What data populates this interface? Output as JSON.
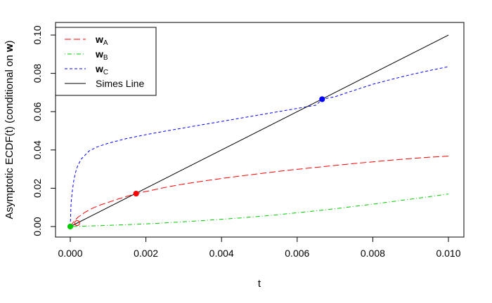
{
  "chart_data": {
    "type": "line",
    "title": "",
    "xlabel": "t",
    "ylabel_main": "Asymptotic ECDF(t) (conditional on ",
    "ylabel_bold": "w",
    "ylabel_tail": ")",
    "xlim": [
      0.0,
      0.01
    ],
    "ylim": [
      0.0,
      0.1
    ],
    "grid": false,
    "legend_position": "top-left",
    "x_ticks": [
      0.0,
      0.002,
      0.004,
      0.006,
      0.008,
      0.01
    ],
    "x_tick_labels": [
      "0.000",
      "0.002",
      "0.004",
      "0.006",
      "0.008",
      "0.010"
    ],
    "y_ticks": [
      0.0,
      0.02,
      0.04,
      0.06,
      0.08,
      0.1
    ],
    "y_tick_labels": [
      "0.00",
      "0.02",
      "0.04",
      "0.06",
      "0.08",
      "0.10"
    ],
    "series": [
      {
        "name": "wA",
        "label_main": "w",
        "label_sub": "A",
        "color": "#ff0000",
        "dash": "longdash",
        "x": [
          0.0,
          0.0001,
          0.0002,
          0.0004,
          0.0006,
          0.0008,
          0.001,
          0.0013,
          0.00174,
          0.002,
          0.0025,
          0.003,
          0.0035,
          0.004,
          0.0045,
          0.005,
          0.0055,
          0.006,
          0.0065,
          0.007,
          0.0075,
          0.008,
          0.0085,
          0.009,
          0.0095,
          0.01
        ],
        "y": [
          0.0,
          0.0028,
          0.0048,
          0.0076,
          0.0097,
          0.0113,
          0.0126,
          0.0146,
          0.0172,
          0.0183,
          0.0204,
          0.0222,
          0.0237,
          0.0251,
          0.0264,
          0.0276,
          0.0288,
          0.0299,
          0.0309,
          0.0319,
          0.0329,
          0.0338,
          0.0347,
          0.0355,
          0.0362,
          0.0368
        ]
      },
      {
        "name": "wB",
        "label_main": "w",
        "label_sub": "B",
        "color": "#00cc00",
        "dash": "dotdash",
        "x": [
          0.0,
          0.0005,
          0.001,
          0.0015,
          0.002,
          0.0025,
          0.003,
          0.0035,
          0.004,
          0.0045,
          0.005,
          0.0055,
          0.006,
          0.0065,
          0.007,
          0.0075,
          0.008,
          0.0085,
          0.009,
          0.0095,
          0.01
        ],
        "y": [
          0.0,
          0.0003,
          0.0006,
          0.001,
          0.0014,
          0.0019,
          0.0025,
          0.0031,
          0.0038,
          0.0045,
          0.0053,
          0.0062,
          0.0072,
          0.0082,
          0.0093,
          0.0105,
          0.0117,
          0.013,
          0.0143,
          0.0156,
          0.017
        ]
      },
      {
        "name": "wC",
        "label_main": "w",
        "label_sub": "C",
        "color": "#0000ff",
        "dash": "dashed",
        "x": [
          0.0,
          2e-05,
          5e-05,
          0.0001,
          0.00015,
          0.0002,
          0.0003,
          0.0005,
          0.0007,
          0.001,
          0.0015,
          0.002,
          0.0025,
          0.003,
          0.0035,
          0.004,
          0.0045,
          0.005,
          0.0055,
          0.006,
          0.0065,
          0.00666,
          0.007,
          0.0075,
          0.008,
          0.0085,
          0.009,
          0.0095,
          0.01
        ],
        "y": [
          0.0,
          0.012,
          0.018,
          0.025,
          0.029,
          0.032,
          0.0355,
          0.0395,
          0.0415,
          0.0435,
          0.046,
          0.048,
          0.0498,
          0.0515,
          0.0532,
          0.0549,
          0.0566,
          0.0583,
          0.06,
          0.0617,
          0.0634,
          0.0665,
          0.0678,
          0.0711,
          0.0743,
          0.0769,
          0.0793,
          0.0815,
          0.0835
        ]
      },
      {
        "name": "Simes Line",
        "label_main": "Simes Line",
        "label_sub": "",
        "color": "#000000",
        "dash": "solid",
        "x": [
          0.0,
          0.01
        ],
        "y": [
          0.0,
          0.1
        ]
      }
    ],
    "markers": [
      {
        "x": 0.0,
        "y": 0.0,
        "color": "#00cc00",
        "fill": "#00cc00"
      },
      {
        "x": 0.00018,
        "y": 0.0018,
        "color": "#ff0000",
        "fill": "none"
      },
      {
        "x": 0.00174,
        "y": 0.0172,
        "color": "#ff0000",
        "fill": "#ff0000"
      },
      {
        "x": 0.00666,
        "y": 0.0665,
        "color": "#0000ff",
        "fill": "#0000ff"
      }
    ]
  }
}
